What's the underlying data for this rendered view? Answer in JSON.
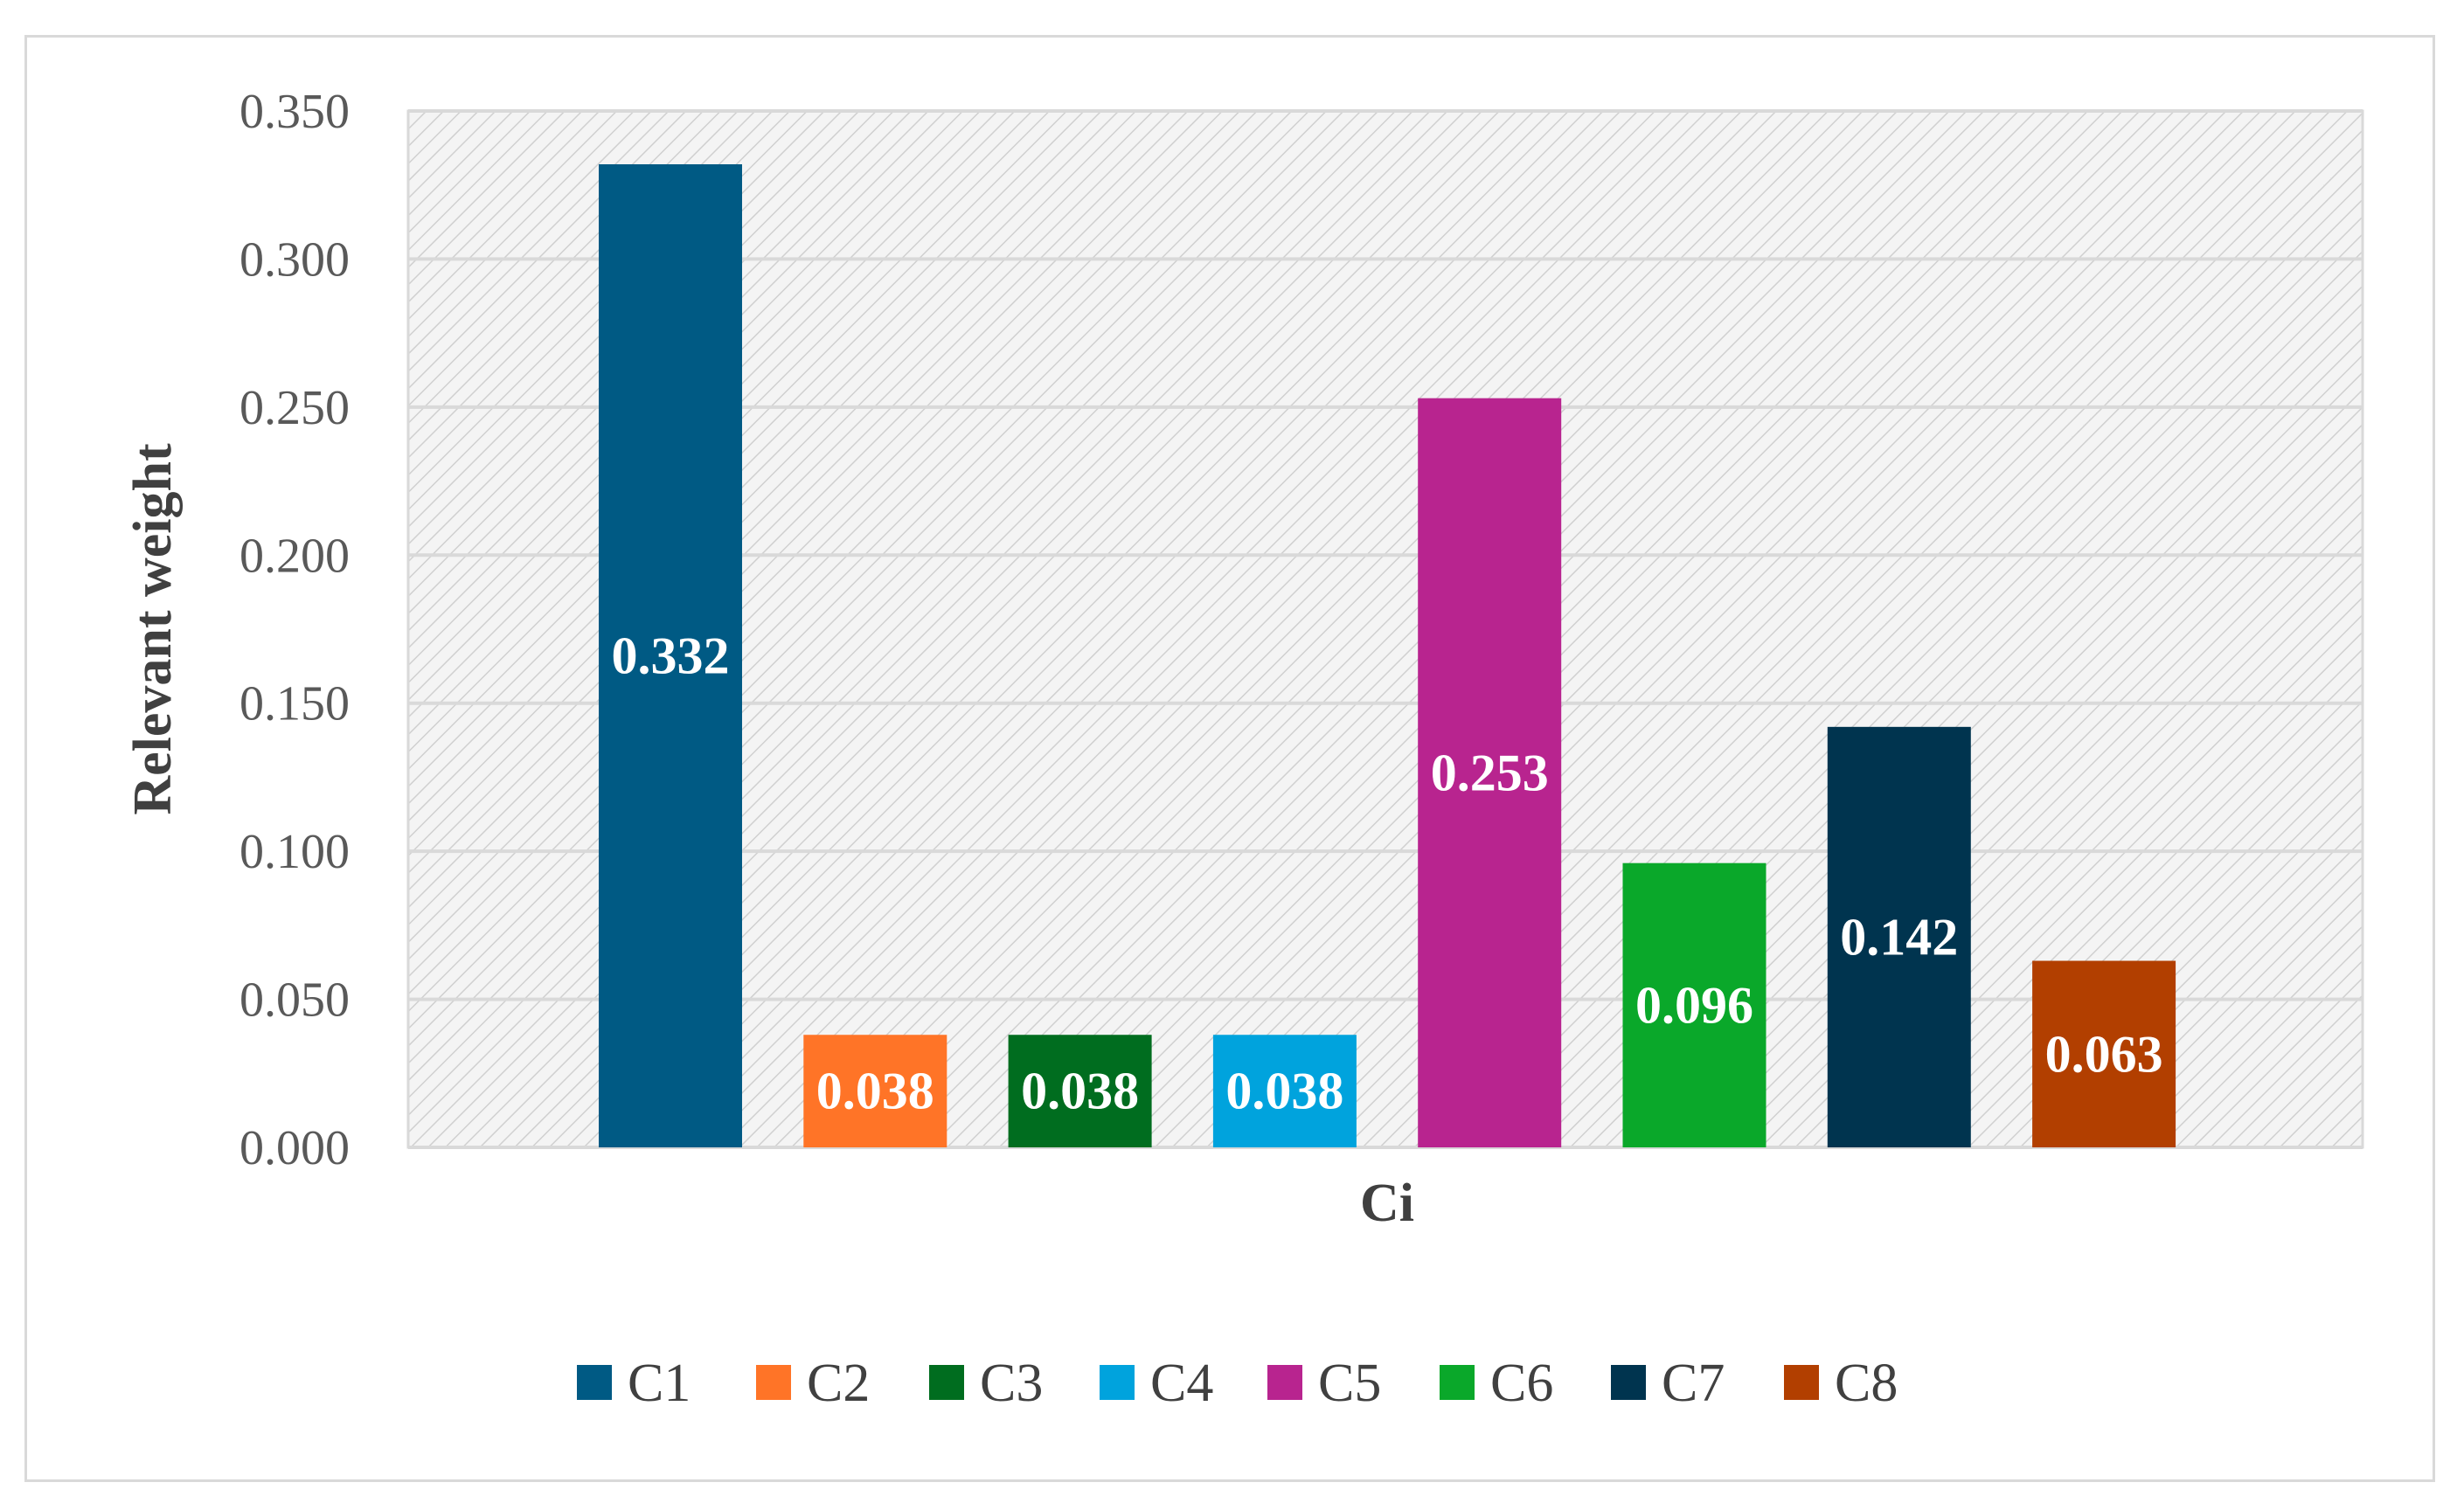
{
  "chart_data": {
    "type": "bar",
    "categories": [
      "C1",
      "C2",
      "C3",
      "C4",
      "C5",
      "C6",
      "C7",
      "C8"
    ],
    "series": [
      {
        "name": "C1",
        "value": 0.332,
        "label": "0.332",
        "color": "#005a84"
      },
      {
        "name": "C2",
        "value": 0.038,
        "label": "0.038",
        "color": "#ff7427"
      },
      {
        "name": "C3",
        "value": 0.038,
        "label": "0.038",
        "color": "#006d1f"
      },
      {
        "name": "C4",
        "value": 0.038,
        "label": "0.038",
        "color": "#00a3dd"
      },
      {
        "name": "C5",
        "value": 0.253,
        "label": "0.253",
        "color": "#b8248f"
      },
      {
        "name": "C6",
        "value": 0.096,
        "label": "0.096",
        "color": "#0aa82a"
      },
      {
        "name": "C7",
        "value": 0.142,
        "label": "0.142",
        "color": "#00344f"
      },
      {
        "name": "C8",
        "value": 0.063,
        "label": "0.063",
        "color": "#b23f00"
      }
    ],
    "xlabel": "Ci",
    "ylabel": "Relevant weight",
    "ylim": [
      0,
      0.35
    ],
    "yticks": [
      "0.000",
      "0.050",
      "0.100",
      "0.150",
      "0.200",
      "0.250",
      "0.300",
      "0.350"
    ],
    "grid": true,
    "legend": "bottom"
  }
}
